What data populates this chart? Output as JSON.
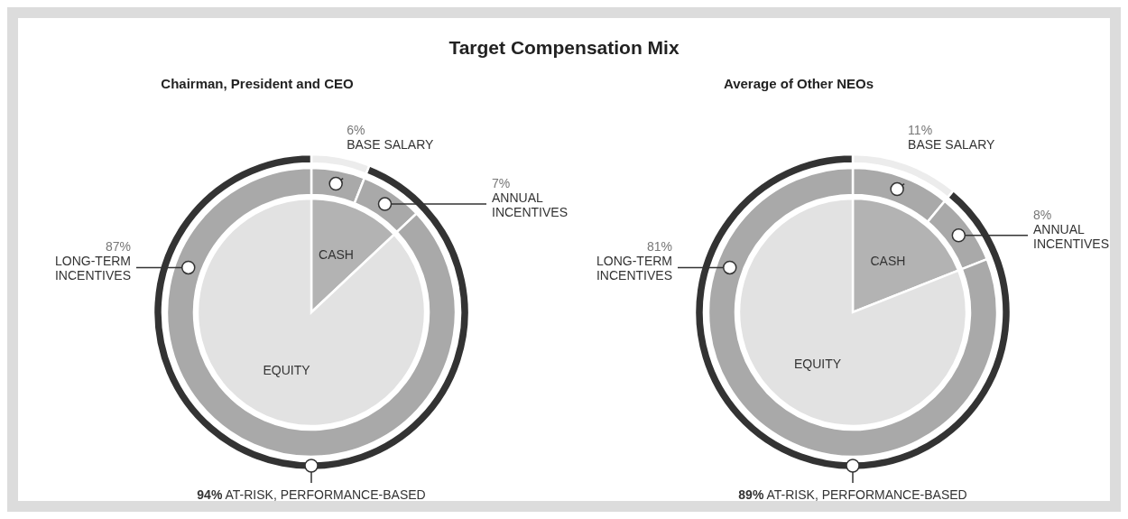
{
  "chart_data": [
    {
      "type": "donut",
      "title": "Target Compensation Mix",
      "subtitle": "Chairman, President and CEO",
      "categories": [
        "BASE SALARY",
        "ANNUAL INCENTIVES",
        "LONG-TERM INCENTIVES"
      ],
      "values": [
        6,
        7,
        87
      ],
      "colors": [
        "#a9a9a9",
        "#a9a9a9",
        "#a9a9a9"
      ],
      "value_labels": [
        "6%",
        "7%",
        "87%"
      ]
    },
    {
      "type": "pie",
      "categories": [
        "CASH",
        "EQUITY"
      ],
      "values": [
        13,
        87
      ],
      "colors": [
        "#b3b3b3",
        "#e2e2e2"
      ]
    },
    {
      "type": "donut",
      "categories": [
        null,
        "AT-RISK, PERFORMANCE-BASED"
      ],
      "values": [
        6,
        94
      ],
      "colors": [
        "#ececec",
        "#333333"
      ],
      "value_labels": [
        null,
        "94%"
      ]
    },
    {
      "type": "donut",
      "subtitle": "Average of Other NEOs",
      "categories": [
        "BASE SALARY",
        "ANNUAL INCENTIVES",
        "LONG-TERM INCENTIVES"
      ],
      "values": [
        11,
        8,
        81
      ],
      "colors": [
        "#a9a9a9",
        "#a9a9a9",
        "#a9a9a9"
      ],
      "value_labels": [
        "11%",
        "8%",
        "81%"
      ]
    },
    {
      "type": "pie",
      "categories": [
        "CASH",
        "EQUITY"
      ],
      "values": [
        19,
        81
      ],
      "colors": [
        "#b3b3b3",
        "#e2e2e2"
      ]
    },
    {
      "type": "donut",
      "categories": [
        null,
        "AT-RISK, PERFORMANCE-BASED"
      ],
      "values": [
        11,
        89
      ],
      "colors": [
        "#ececec",
        "#333333"
      ],
      "value_labels": [
        null,
        "89%"
      ]
    }
  ]
}
